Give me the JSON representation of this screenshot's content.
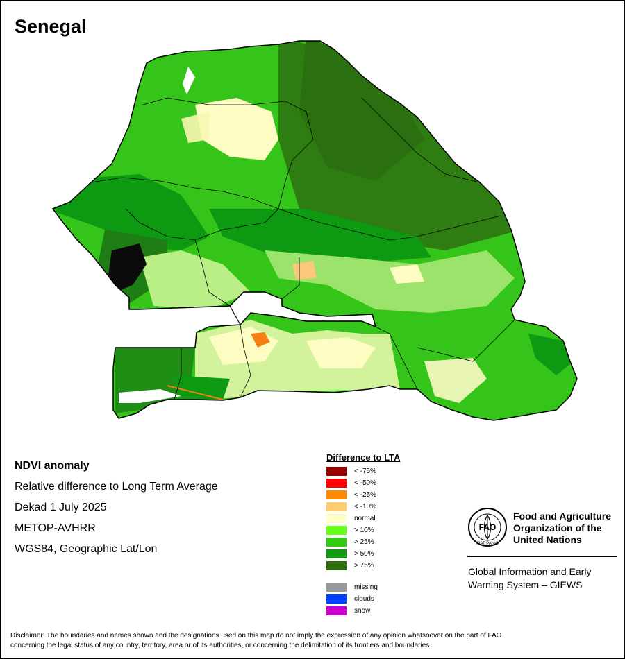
{
  "map": {
    "country": "Senegal",
    "colors": {
      "dark_green": "#2e7d12",
      "green": "#0d9a12",
      "light_green": "#35c419",
      "bright_green": "#6cf226",
      "normal": "#fdfcc2",
      "below_10": "#fcc97a",
      "below_25": "#f47f12",
      "water": "#ffffff"
    }
  },
  "info": {
    "line1": "NDVI anomaly",
    "line2": "Relative difference to Long Term Average",
    "line3": "Dekad 1 July 2025",
    "line4": "METOP-AVHRR",
    "line5": "WGS84, Geographic Lat/Lon"
  },
  "legend": {
    "title": "Difference to LTA",
    "items": [
      {
        "label": "< -75%",
        "color": "#990000"
      },
      {
        "label": "< -50%",
        "color": "#ff0000"
      },
      {
        "label": "< -25%",
        "color": "#ff8c00"
      },
      {
        "label": "< -10%",
        "color": "#ffcc70"
      },
      {
        "label": "normal",
        "color": "#ffffc8"
      },
      {
        "label": "> 10%",
        "color": "#66ff1a"
      },
      {
        "label": "> 25%",
        "color": "#33cc11"
      },
      {
        "label": "> 50%",
        "color": "#119911"
      },
      {
        "label": "> 75%",
        "color": "#2e6e10"
      }
    ],
    "extra": [
      {
        "label": "missing",
        "color": "#999999"
      },
      {
        "label": "clouds",
        "color": "#0040ff"
      },
      {
        "label": "snow",
        "color": "#cc00cc"
      }
    ]
  },
  "fao": {
    "logo_letters": "FAO",
    "logo_motto": "FIAT PANIS",
    "name_line1": "Food and Agriculture",
    "name_line2": "Organization of the",
    "name_line3": "United Nations",
    "giews_line1": "Global Information and Early",
    "giews_line2": "Warning System – GIEWS"
  },
  "disclaimer": {
    "line1": "Disclaimer: The boundaries and names shown and the designations used on this map do not imply the expression of any opinion whatsoever on the part of FAO",
    "line2": "concerning the legal status of any country, territory, area or of its authorities, or concerning the delimitation of its frontiers and boundaries."
  }
}
